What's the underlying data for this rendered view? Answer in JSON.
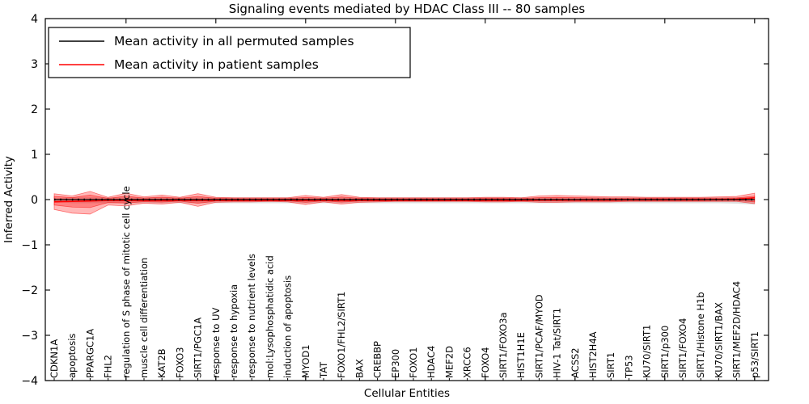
{
  "title": "Signaling events mediated by HDAC Class III -- 80 samples",
  "axes": {
    "ylabel": "Inferred Activity",
    "xlabel": "Cellular Entities",
    "ytick_labels": [
      "4",
      "3",
      "2",
      "1",
      "0",
      "−1",
      "−2",
      "−3",
      "−4"
    ],
    "ytick_values": [
      4,
      3,
      2,
      1,
      0,
      -1,
      -2,
      -3,
      -4
    ]
  },
  "legend": {
    "entries": [
      {
        "label": "Mean activity in all permuted samples",
        "color": "#000000"
      },
      {
        "label": "Mean activity in patient samples",
        "color": "#ff0000"
      }
    ]
  },
  "colors": {
    "permuted_line": "#000000",
    "patient_line": "#ff0000",
    "patient_band": "#ff0000",
    "permuted_band": "#bbbbbb",
    "spine": "#000000",
    "background": "#ffffff"
  },
  "chart_data": {
    "type": "line",
    "title": "Signaling events mediated by HDAC Class III -- 80 samples",
    "xlabel": "Cellular Entities",
    "ylabel": "Inferred Activity",
    "ylim": [
      -4,
      4
    ],
    "grid": false,
    "legend_position": "upper left",
    "categories": [
      "CDKN1A",
      "apoptosis",
      "PPARGC1A",
      "FHL2",
      "regulation of S phase of mitotic cell cycle",
      "muscle cell differentiation",
      "KAT2B",
      "FOXO3",
      "SIRT1/PGC1A",
      "response to UV",
      "response to hypoxia",
      "response to nutrient levels",
      "mol:Lysophosphatidic acid",
      "induction of apoptosis",
      "MYOD1",
      "TAT",
      "FOXO1/FHL2/SIRT1",
      "BAX",
      "CREBBP",
      "EP300",
      "FOXO1",
      "HDAC4",
      "MEF2D",
      "XRCC6",
      "FOXO4",
      "SIRT1/FOXO3a",
      "HIST1H1E",
      "SIRT1/PCAF/MYOD",
      "HIV-1 Tat/SIRT1",
      "ACSS2",
      "HIST2H4A",
      "SIRT1",
      "TP53",
      "KU70/SIRT1",
      "SIRT1/p300",
      "SIRT1/FOXO4",
      "SIRT1/Histone H1b",
      "KU70/SIRT1/BAX",
      "SIRT1/MEF2D/HDAC4",
      "p53/SIRT1"
    ],
    "series": [
      {
        "name": "Mean activity in all permuted samples",
        "values": [
          0,
          0,
          0,
          0,
          0,
          0,
          0,
          0,
          0,
          0,
          0,
          0,
          0,
          0,
          0,
          0,
          0,
          0,
          0,
          0,
          0,
          0,
          0,
          0,
          0,
          0,
          0,
          0,
          0,
          0,
          0,
          0,
          0,
          0,
          0,
          0,
          0,
          0,
          0,
          0
        ]
      },
      {
        "name": "Mean activity in patient samples",
        "values": [
          -0.05,
          -0.04,
          -0.03,
          -0.02,
          -0.02,
          -0.02,
          -0.02,
          -0.02,
          -0.02,
          -0.02,
          -0.02,
          -0.02,
          -0.02,
          -0.02,
          -0.02,
          -0.02,
          -0.02,
          -0.02,
          -0.02,
          -0.02,
          -0.02,
          -0.02,
          -0.02,
          -0.02,
          -0.02,
          -0.02,
          -0.02,
          -0.01,
          -0.01,
          -0.01,
          -0.01,
          -0.01,
          -0.01,
          -0.01,
          -0.01,
          -0.01,
          -0.01,
          0.0,
          0.01,
          0.04
        ]
      }
    ],
    "bands": {
      "patient_upper": [
        0.13,
        0.08,
        0.18,
        0.05,
        0.14,
        0.06,
        0.1,
        0.05,
        0.13,
        0.05,
        0.04,
        0.04,
        0.04,
        0.04,
        0.09,
        0.05,
        0.11,
        0.05,
        0.04,
        0.04,
        0.04,
        0.04,
        0.04,
        0.04,
        0.05,
        0.05,
        0.04,
        0.08,
        0.09,
        0.08,
        0.07,
        0.06,
        0.06,
        0.05,
        0.05,
        0.05,
        0.05,
        0.06,
        0.07,
        0.14
      ],
      "patient_lower": [
        -0.22,
        -0.3,
        -0.32,
        -0.12,
        -0.14,
        -0.08,
        -0.1,
        -0.06,
        -0.15,
        -0.06,
        -0.05,
        -0.05,
        -0.04,
        -0.05,
        -0.11,
        -0.05,
        -0.1,
        -0.06,
        -0.05,
        -0.04,
        -0.04,
        -0.04,
        -0.04,
        -0.04,
        -0.05,
        -0.05,
        -0.04,
        -0.06,
        -0.06,
        -0.05,
        -0.05,
        -0.05,
        -0.04,
        -0.04,
        -0.04,
        -0.04,
        -0.04,
        -0.04,
        -0.04,
        -0.09
      ],
      "permuted_upper": [
        0.03,
        0.05,
        0.05,
        0.05,
        0.05,
        0.05,
        0.05,
        0.05,
        0.05,
        0.05,
        0.05,
        0.05,
        0.05,
        0.05,
        0.05,
        0.05,
        0.05,
        0.05,
        0.05,
        0.05,
        0.05,
        0.05,
        0.05,
        0.05,
        0.05,
        0.05,
        0.05,
        0.05,
        0.05,
        0.05,
        0.05,
        0.05,
        0.05,
        0.05,
        0.05,
        0.05,
        0.05,
        0.05,
        0.05,
        0.04
      ],
      "permuted_lower": [
        -0.04,
        -0.08,
        -0.08,
        -0.08,
        -0.08,
        -0.08,
        -0.08,
        -0.08,
        -0.08,
        -0.08,
        -0.08,
        -0.08,
        -0.08,
        -0.08,
        -0.08,
        -0.08,
        -0.08,
        -0.08,
        -0.08,
        -0.08,
        -0.08,
        -0.08,
        -0.08,
        -0.08,
        -0.08,
        -0.08,
        -0.08,
        -0.08,
        -0.08,
        -0.08,
        -0.08,
        -0.08,
        -0.08,
        -0.08,
        -0.08,
        -0.08,
        -0.08,
        -0.08,
        -0.09,
        -0.11
      ]
    }
  }
}
